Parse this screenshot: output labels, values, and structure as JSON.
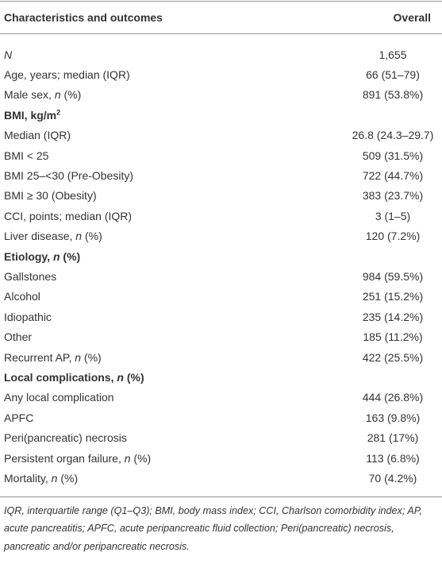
{
  "table": {
    "header": [
      "Characteristics and outcomes",
      "Overall"
    ],
    "rows": [
      {
        "label": [
          "N"
        ],
        "value": "1,655"
      },
      {
        "label": [
          "Age, years; median (IQR)"
        ],
        "value": "66 (51–79)"
      },
      {
        "label": [
          "Male sex, ",
          "n",
          " (%)"
        ],
        "value": "891 (53.8%)"
      },
      {
        "label": [
          "BMI, kg/m",
          "2"
        ]
      },
      {
        "label": [
          "Median (IQR)"
        ],
        "value": "26.8 (24.3–29.7)"
      },
      {
        "label": [
          "BMI < 25"
        ],
        "value": "509 (31.5%)"
      },
      {
        "label": [
          "BMI 25–<30 (Pre-Obesity)"
        ],
        "value": "722 (44.7%)"
      },
      {
        "label": [
          "BMI ≥ 30 (Obesity)"
        ],
        "value": "383 (23.7%)"
      },
      {
        "label": [
          "CCI, points; median (IQR)"
        ],
        "value": "3 (1–5)"
      },
      {
        "label": [
          "Liver disease, ",
          "n",
          " (%)"
        ],
        "value": "120 (7.2%)"
      },
      {
        "label": [
          "Etiology, ",
          "n",
          " (%)"
        ]
      },
      {
        "label": [
          "Gallstones"
        ],
        "value": "984 (59.5%)"
      },
      {
        "label": [
          "Alcohol"
        ],
        "value": "251 (15.2%)"
      },
      {
        "label": [
          "Idiopathic"
        ],
        "value": "235 (14.2%)"
      },
      {
        "label": [
          "Other"
        ],
        "value": "185 (11.2%)"
      },
      {
        "label": [
          "Recurrent AP, ",
          "n",
          " (%)"
        ],
        "value": "422 (25.5%)"
      },
      {
        "label": [
          "Local complications, ",
          "n",
          " (%)"
        ]
      },
      {
        "label": [
          "Any local complication"
        ],
        "value": "444 (26.8%)"
      },
      {
        "label": [
          "APFC"
        ],
        "value": "163 (9.8%)"
      },
      {
        "label": [
          "Peri(pancreatic) necrosis"
        ],
        "value": "281 (17%)"
      },
      {
        "label": [
          "Persistent organ failure, ",
          "n",
          " (%)"
        ],
        "value": "113 (6.8%)"
      },
      {
        "label": [
          "Mortality, ",
          "n",
          " (%)"
        ],
        "value": "70 (4.2%)"
      }
    ],
    "footnote": "IQR, interquartile range (Q1–Q3); BMI, body mass index; CCI, Charlson comorbidity index; AP, acute pancreatitis; APFC, acute peripancreatic fluid collection; Peri(pancreatic) necrosis, pancreatic and/or peripancreatic necrosis."
  }
}
